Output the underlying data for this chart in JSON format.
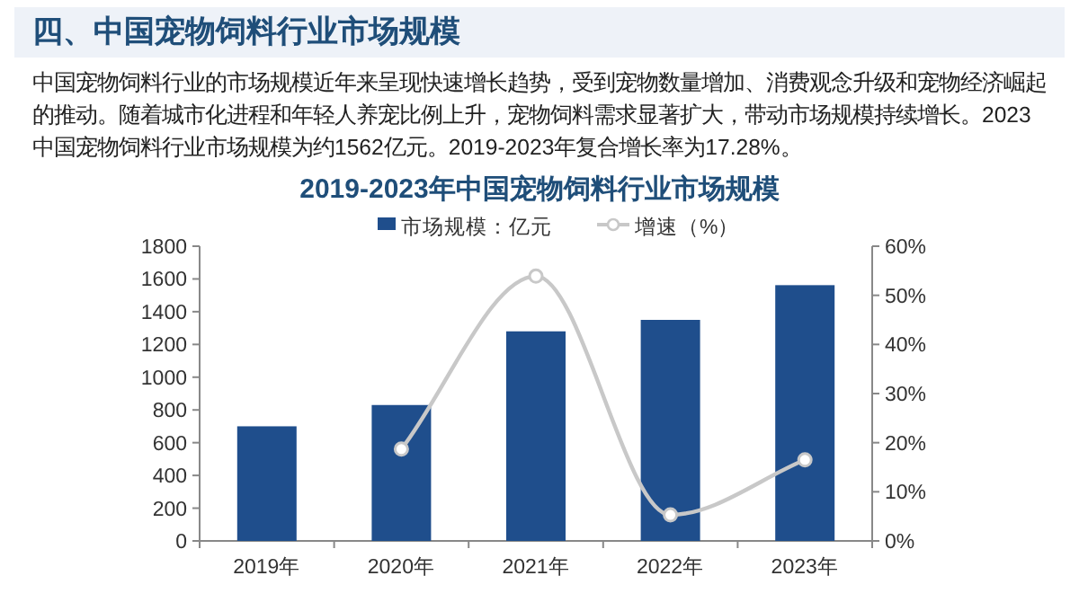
{
  "chart_data": {
    "type": "bar",
    "title": "2019-2023年中国宠物饲料行业市场规模",
    "annotations": [
      "四、中国宠物饲料行业市场规模",
      "中国宠物饲料行业的市场规模近年来呈现快速增长趋势，受到宠物数量增加、消费观念升级和宠物经济崛起的推动。随着城市化进程和年轻人养宠比例上升，宠物饲料需求显著扩大，带动市场规模持续增长。2023中国宠物饲料行业市场规模为约1562亿元。2019-2023年复合增长率为17.28%。"
    ],
    "categories": [
      "2019年",
      "2020年",
      "2021年",
      "2022年",
      "2023年"
    ],
    "series": [
      {
        "name": "市场规模：亿元",
        "color": "#1f4e8c",
        "values": [
          700,
          830,
          1280,
          1350,
          1562
        ]
      },
      {
        "name": "增速（%）",
        "type": "line",
        "axis": "y2",
        "color": "#c8c8c8",
        "marker": "circle",
        "values": [
          null,
          18.7,
          53.9,
          5.3,
          16.5
        ]
      }
    ],
    "ylim": [
      0,
      1800
    ],
    "yticks": [
      0,
      200,
      400,
      600,
      800,
      1000,
      1200,
      1400,
      1600,
      1800
    ],
    "y2lim": [
      0,
      60
    ],
    "y2ticks": [
      {
        "value": 0,
        "label": "0%"
      },
      {
        "value": 10,
        "label": "10%"
      },
      {
        "value": 20,
        "label": "20%"
      },
      {
        "value": 30,
        "label": "30%"
      },
      {
        "value": 40,
        "label": "40%"
      },
      {
        "value": 50,
        "label": "50%"
      },
      {
        "value": 60,
        "label": "60%"
      }
    ],
    "legend": "top",
    "grid": false
  }
}
